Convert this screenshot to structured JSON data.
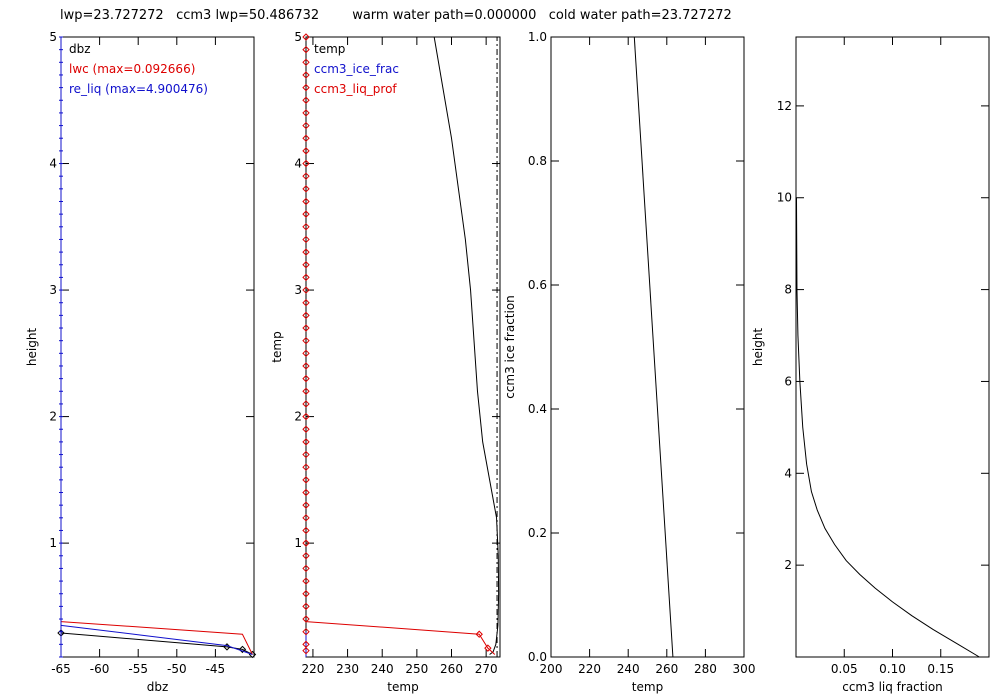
{
  "title": "lwp=23.727272   ccm3 lwp=50.486732        warm water path=0.000000   cold water path=23.727272",
  "chart_data": [
    {
      "type": "line",
      "xlabel": "dbz",
      "ylabel": "height",
      "xlim": [
        -65,
        -40
      ],
      "ylim": [
        0.1,
        5
      ],
      "xticks": [
        -65,
        -60,
        -55,
        -50,
        -45
      ],
      "yticks": [
        1,
        2,
        3,
        4,
        5
      ],
      "legend": [
        "dbz",
        "lwc (max=0.092666)",
        "re_liq (max=4.900476)"
      ],
      "series": [
        {
          "name": "dbz",
          "color": "#000000",
          "marker": "diamond",
          "x": [
            -65,
            -43.5,
            -41.5,
            -40.2
          ],
          "y": [
            0.29,
            0.18,
            0.16,
            0.12
          ]
        },
        {
          "name": "lwc",
          "color": "#dd0000",
          "marker": "none",
          "x": [
            -65,
            -41.5,
            -40.2
          ],
          "y": [
            0.38,
            0.28,
            0.12
          ]
        },
        {
          "name": "re_liq",
          "color": "#1010cc",
          "marker": "none",
          "x": [
            -65,
            -43.5,
            -40.2
          ],
          "y": [
            0.35,
            0.19,
            0.12
          ]
        },
        {
          "name": "re_liq_axis",
          "color": "#1010cc",
          "marker": "tick",
          "x": [
            -65,
            -65
          ],
          "y": [
            0.1,
            5
          ]
        }
      ]
    },
    {
      "type": "line",
      "xlabel": "temp",
      "ylabel": "temp",
      "xlim": [
        218,
        274
      ],
      "ylim": [
        0.1,
        5
      ],
      "xticks": [
        220,
        230,
        240,
        250,
        260,
        270
      ],
      "yticks": [
        1,
        2,
        3,
        4,
        5
      ],
      "legend": [
        "temp",
        "ccm3_ice_frac",
        "ccm3_liq_prof"
      ],
      "series": [
        {
          "name": "temp",
          "color": "#000000",
          "marker": "none",
          "x": [
            255,
            257.5,
            260,
            262,
            264,
            265.5,
            266.5,
            267.5,
            269,
            271,
            273,
            273.5,
            273.6,
            273.4,
            272.8,
            272,
            271
          ],
          "y": [
            5,
            4.6,
            4.2,
            3.8,
            3.4,
            3.0,
            2.6,
            2.2,
            1.8,
            1.5,
            1.2,
            0.9,
            0.6,
            0.35,
            0.2,
            0.14,
            0.12
          ]
        },
        {
          "name": "ccm3_ice_frac",
          "color": "#1010cc",
          "marker": "none",
          "x": [
            218,
            218
          ],
          "y": [
            0.1,
            0.3
          ]
        },
        {
          "name": "ccm3_liq_prof",
          "color": "#dd0000",
          "marker": "none",
          "x": [
            218,
            268,
            270.5,
            272.5
          ],
          "y": [
            0.38,
            0.28,
            0.17,
            0.12
          ]
        },
        {
          "name": "ccm3_liq_markers",
          "color": "#dd0000",
          "marker": "diamond",
          "x": [
            218,
            218,
            218,
            218,
            218,
            218,
            218,
            218,
            218,
            218,
            218,
            218,
            218,
            218,
            218,
            218,
            218,
            218,
            218,
            218,
            218,
            218,
            218,
            218,
            218,
            218,
            218,
            218,
            218,
            218,
            218,
            218,
            218,
            218,
            218,
            218,
            218,
            218,
            218,
            218,
            218,
            218,
            218,
            218,
            218,
            218,
            218,
            218,
            218,
            218
          ],
          "y": [
            0.2,
            0.3,
            0.4,
            0.5,
            0.6,
            0.7,
            0.8,
            0.9,
            1.0,
            1.1,
            1.2,
            1.3,
            1.4,
            1.5,
            1.6,
            1.7,
            1.8,
            1.9,
            2.0,
            2.1,
            2.2,
            2.3,
            2.4,
            2.5,
            2.6,
            2.7,
            2.8,
            2.9,
            3.0,
            3.1,
            3.2,
            3.3,
            3.4,
            3.5,
            3.6,
            3.7,
            3.8,
            3.9,
            4.0,
            4.1,
            4.2,
            4.3,
            4.4,
            4.5,
            4.6,
            4.7,
            4.8,
            4.9,
            5.0,
            0.15
          ]
        },
        {
          "name": "profile_markers",
          "color": "#dd0000",
          "marker": "diamond",
          "x": [
            268,
            270.5
          ],
          "y": [
            0.28,
            0.17
          ]
        },
        {
          "name": "freezing_line",
          "color": "#000000",
          "marker": "none",
          "dash": true,
          "x": [
            273.15,
            273.15
          ],
          "y": [
            0.1,
            5
          ]
        }
      ]
    },
    {
      "type": "line",
      "xlabel": "temp",
      "ylabel": "ccm3 ice fraction",
      "xlim": [
        200,
        300
      ],
      "ylim": [
        0,
        1
      ],
      "xticks": [
        200,
        220,
        240,
        260,
        280,
        300
      ],
      "yticks": [
        0.0,
        0.2,
        0.4,
        0.6,
        0.8,
        1.0
      ],
      "ytick_labels": [
        "0.0",
        "0.2",
        "0.4",
        "0.6",
        "0.8",
        "1.0"
      ],
      "series": [
        {
          "name": "ice_frac",
          "color": "#000000",
          "marker": "none",
          "x": [
            243.16,
            263.16
          ],
          "y": [
            1,
            0
          ]
        }
      ]
    },
    {
      "type": "line",
      "xlabel": "ccm3 liq fraction",
      "ylabel": "height",
      "xlim": [
        0,
        0.2
      ],
      "ylim": [
        0,
        13.5
      ],
      "xticks": [
        0.05,
        0.1,
        0.15
      ],
      "xtick_labels": [
        "0.05",
        "0.10",
        "0.15"
      ],
      "yticks": [
        2,
        4,
        6,
        8,
        10,
        12
      ],
      "series": [
        {
          "name": "liq_fraction",
          "color": "#000000",
          "marker": "none",
          "x": [
            0.0005,
            0.001,
            0.002,
            0.004,
            0.007,
            0.011,
            0.016,
            0.022,
            0.03,
            0.04,
            0.052,
            0.066,
            0.082,
            0.1,
            0.12,
            0.142,
            0.166,
            0.19
          ],
          "y": [
            10.0,
            8.0,
            7.0,
            6.0,
            5.0,
            4.2,
            3.6,
            3.2,
            2.8,
            2.45,
            2.1,
            1.8,
            1.5,
            1.2,
            0.9,
            0.6,
            0.3,
            0.0
          ]
        }
      ]
    }
  ]
}
